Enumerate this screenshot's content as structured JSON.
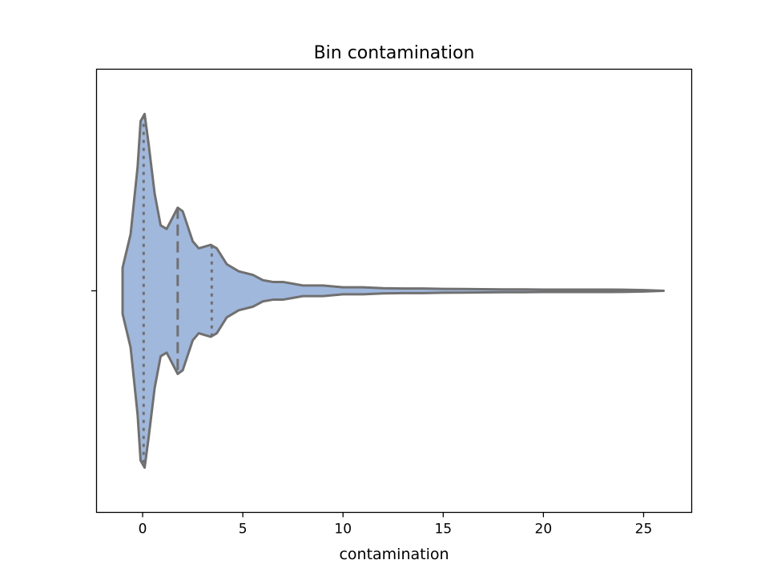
{
  "chart_data": {
    "type": "violin",
    "title": "Bin contamination",
    "xlabel": "contamination",
    "ylabel": "",
    "xlim": [
      -2.3,
      27.4
    ],
    "xticks": [
      0,
      5,
      10,
      15,
      20,
      25
    ],
    "tick_labels": [
      "0",
      "5",
      "10",
      "15",
      "20",
      "25"
    ],
    "grid": false,
    "orientation": "horizontal",
    "data_range": [
      -1.0,
      26.0
    ],
    "quartiles": {
      "q1": 0.05,
      "median": 1.75,
      "q3": 3.45
    },
    "density_profile": [
      {
        "x": -1.0,
        "d": 0.13
      },
      {
        "x": -0.6,
        "d": 0.32
      },
      {
        "x": -0.25,
        "d": 0.7
      },
      {
        "x": -0.1,
        "d": 0.96
      },
      {
        "x": 0.1,
        "d": 1.0
      },
      {
        "x": 0.3,
        "d": 0.83
      },
      {
        "x": 0.6,
        "d": 0.55
      },
      {
        "x": 0.9,
        "d": 0.37
      },
      {
        "x": 1.2,
        "d": 0.35
      },
      {
        "x": 1.75,
        "d": 0.47
      },
      {
        "x": 2.0,
        "d": 0.45
      },
      {
        "x": 2.5,
        "d": 0.28
      },
      {
        "x": 2.8,
        "d": 0.24
      },
      {
        "x": 3.4,
        "d": 0.26
      },
      {
        "x": 3.7,
        "d": 0.24
      },
      {
        "x": 4.2,
        "d": 0.15
      },
      {
        "x": 4.8,
        "d": 0.11
      },
      {
        "x": 5.5,
        "d": 0.09
      },
      {
        "x": 6.0,
        "d": 0.06
      },
      {
        "x": 6.5,
        "d": 0.05
      },
      {
        "x": 7.0,
        "d": 0.05
      },
      {
        "x": 7.5,
        "d": 0.04
      },
      {
        "x": 8.0,
        "d": 0.03
      },
      {
        "x": 9.0,
        "d": 0.03
      },
      {
        "x": 10.0,
        "d": 0.02
      },
      {
        "x": 11.0,
        "d": 0.02
      },
      {
        "x": 12.0,
        "d": 0.015
      },
      {
        "x": 13.0,
        "d": 0.013
      },
      {
        "x": 14.0,
        "d": 0.013
      },
      {
        "x": 15.0,
        "d": 0.011
      },
      {
        "x": 16.0,
        "d": 0.01
      },
      {
        "x": 17.0,
        "d": 0.009
      },
      {
        "x": 18.0,
        "d": 0.008
      },
      {
        "x": 19.0,
        "d": 0.008
      },
      {
        "x": 20.0,
        "d": 0.007
      },
      {
        "x": 21.0,
        "d": 0.007
      },
      {
        "x": 22.0,
        "d": 0.007
      },
      {
        "x": 23.0,
        "d": 0.007
      },
      {
        "x": 24.0,
        "d": 0.006
      },
      {
        "x": 25.0,
        "d": 0.004
      },
      {
        "x": 26.0,
        "d": 0.0
      }
    ],
    "colors": {
      "fill": "#a1b8dd",
      "stroke": "#707070"
    }
  }
}
